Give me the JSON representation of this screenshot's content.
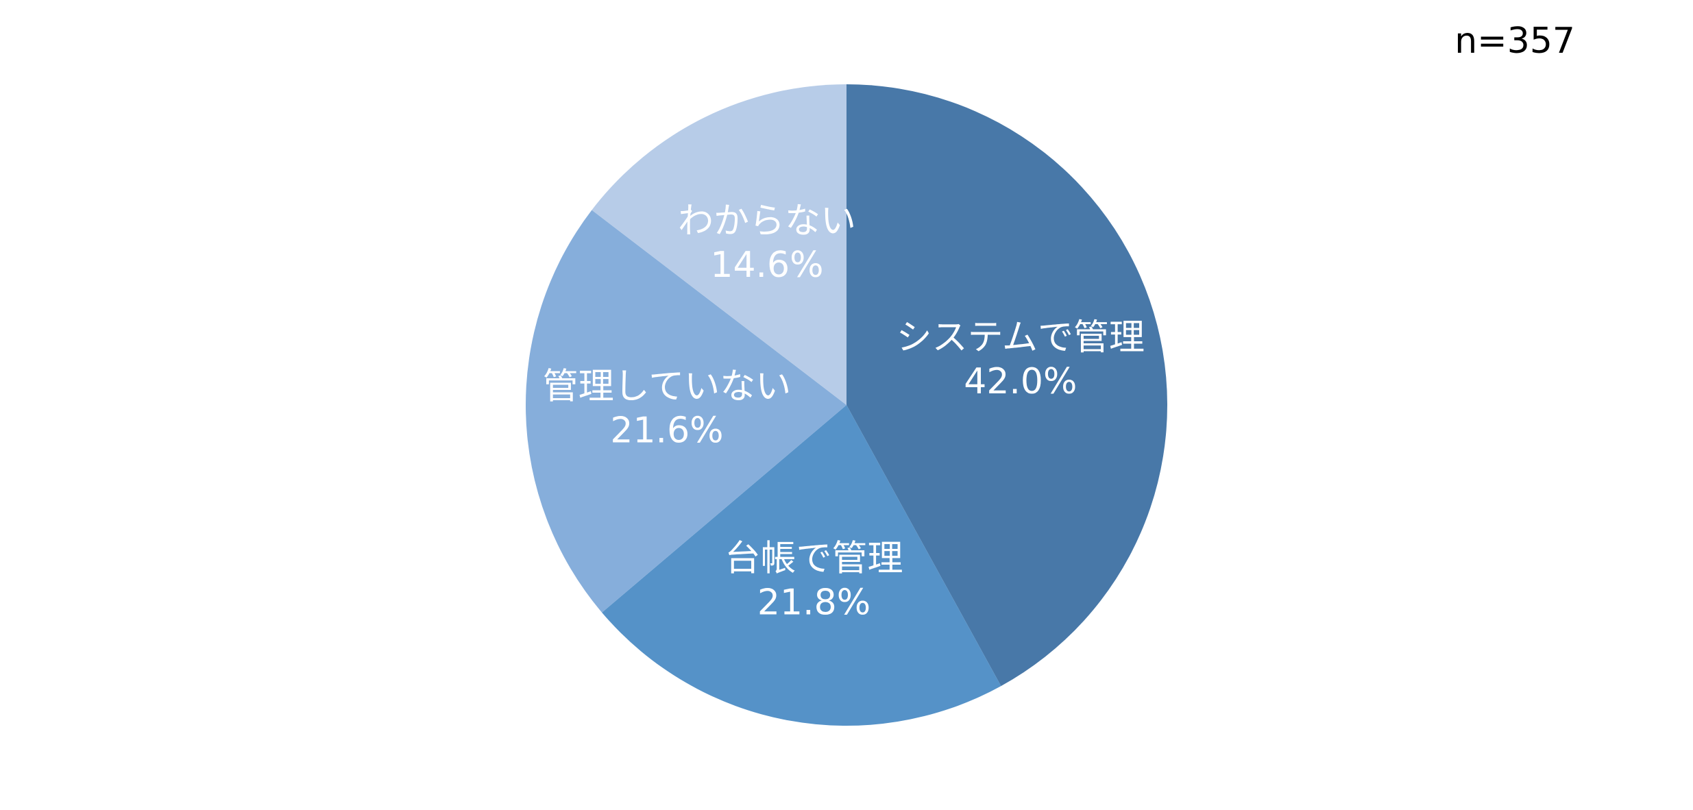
{
  "chart_data": {
    "type": "pie",
    "note": "n=357",
    "categories": [
      "システムで管理",
      "台帳で管理",
      "管理していない",
      "わからない"
    ],
    "values": [
      42.0,
      21.8,
      21.6,
      14.6
    ],
    "value_labels": [
      "42.0%",
      "21.8%",
      "21.6%",
      "14.6%"
    ],
    "colors": [
      "#4878a8",
      "#5592c8",
      "#86aedb",
      "#b7cce8"
    ]
  }
}
